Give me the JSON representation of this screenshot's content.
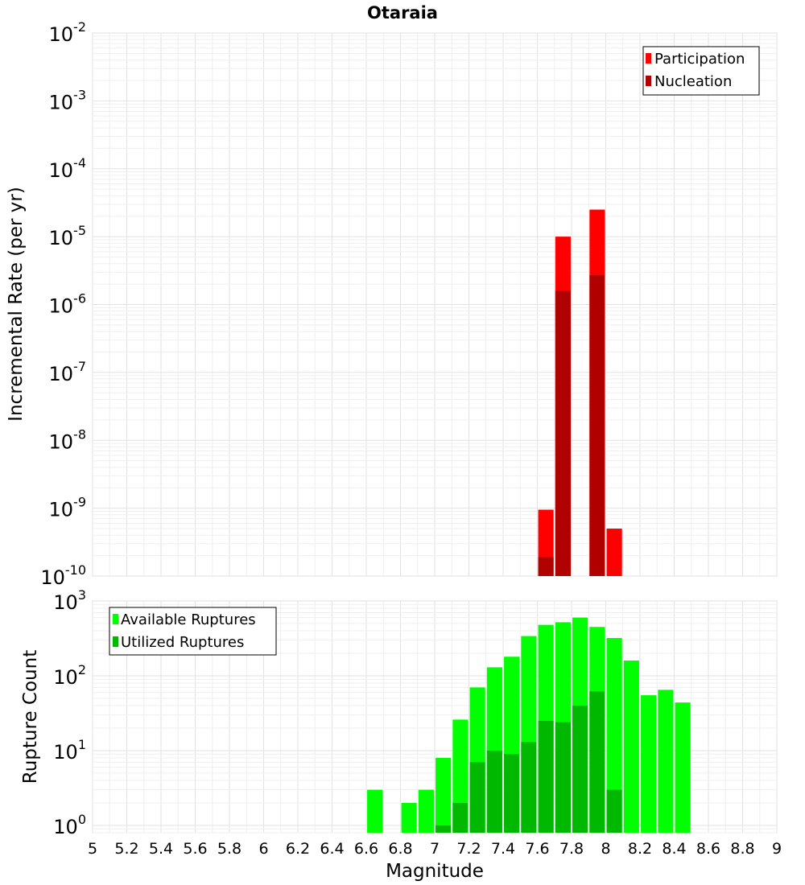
{
  "chart_data": [
    {
      "type": "bar",
      "title": "Otaraia",
      "xlabel": "",
      "ylabel": "Incremental Rate (per yr)",
      "yscale": "log",
      "ylim": [
        1e-10,
        0.01
      ],
      "xlim": [
        5,
        9
      ],
      "y_tick_exponents": [
        "-10",
        "-9",
        "-8",
        "-7",
        "-6",
        "-5",
        "-4",
        "-3",
        "-2"
      ],
      "y_tick_base": "10",
      "grid": true,
      "legend_position": "top-right",
      "bar_width": 0.09,
      "series": [
        {
          "name": "Participation",
          "color": "#ff0000",
          "points": [
            {
              "x": 7.65,
              "y": 9.5e-10
            },
            {
              "x": 7.75,
              "y": 1e-05
            },
            {
              "x": 7.95,
              "y": 2.5e-05
            },
            {
              "x": 8.05,
              "y": 5e-10
            }
          ]
        },
        {
          "name": "Nucleation",
          "color": "#b00000",
          "points": [
            {
              "x": 7.65,
              "y": 1.9e-10
            },
            {
              "x": 7.75,
              "y": 1.6e-06
            },
            {
              "x": 7.95,
              "y": 2.7e-06
            }
          ]
        }
      ]
    },
    {
      "type": "bar",
      "xlabel": "Magnitude",
      "ylabel": "Rupture Count",
      "yscale": "log",
      "ylim": [
        0.8,
        1000
      ],
      "xlim": [
        5,
        9
      ],
      "y_tick_exponents": [
        "0",
        "1",
        "2",
        "3"
      ],
      "y_tick_base": "10",
      "x_ticks": [
        "5",
        "5.2",
        "5.4",
        "5.6",
        "5.8",
        "6",
        "6.2",
        "6.4",
        "6.6",
        "6.8",
        "7",
        "7.2",
        "7.4",
        "7.6",
        "7.8",
        "8",
        "8.2",
        "8.4",
        "8.6",
        "8.8",
        "9"
      ],
      "grid": true,
      "legend_position": "top-left",
      "bar_width": 0.09,
      "series": [
        {
          "name": "Available Ruptures",
          "color": "#00ff00",
          "points": [
            {
              "x": 6.65,
              "y": 3
            },
            {
              "x": 6.85,
              "y": 2
            },
            {
              "x": 6.95,
              "y": 3
            },
            {
              "x": 7.05,
              "y": 8
            },
            {
              "x": 7.15,
              "y": 26
            },
            {
              "x": 7.25,
              "y": 70
            },
            {
              "x": 7.35,
              "y": 130
            },
            {
              "x": 7.45,
              "y": 180
            },
            {
              "x": 7.55,
              "y": 340
            },
            {
              "x": 7.65,
              "y": 480
            },
            {
              "x": 7.75,
              "y": 520
            },
            {
              "x": 7.85,
              "y": 600
            },
            {
              "x": 7.95,
              "y": 450
            },
            {
              "x": 8.05,
              "y": 320
            },
            {
              "x": 8.15,
              "y": 160
            },
            {
              "x": 8.25,
              "y": 55
            },
            {
              "x": 8.35,
              "y": 65
            },
            {
              "x": 8.45,
              "y": 44
            }
          ]
        },
        {
          "name": "Utilized Ruptures",
          "color": "#00b800",
          "points": [
            {
              "x": 7.05,
              "y": 1
            },
            {
              "x": 7.15,
              "y": 2
            },
            {
              "x": 7.25,
              "y": 7
            },
            {
              "x": 7.35,
              "y": 10
            },
            {
              "x": 7.45,
              "y": 9
            },
            {
              "x": 7.55,
              "y": 13
            },
            {
              "x": 7.65,
              "y": 25
            },
            {
              "x": 7.75,
              "y": 24
            },
            {
              "x": 7.85,
              "y": 40
            },
            {
              "x": 7.95,
              "y": 62
            },
            {
              "x": 8.05,
              "y": 3
            }
          ]
        }
      ]
    }
  ]
}
